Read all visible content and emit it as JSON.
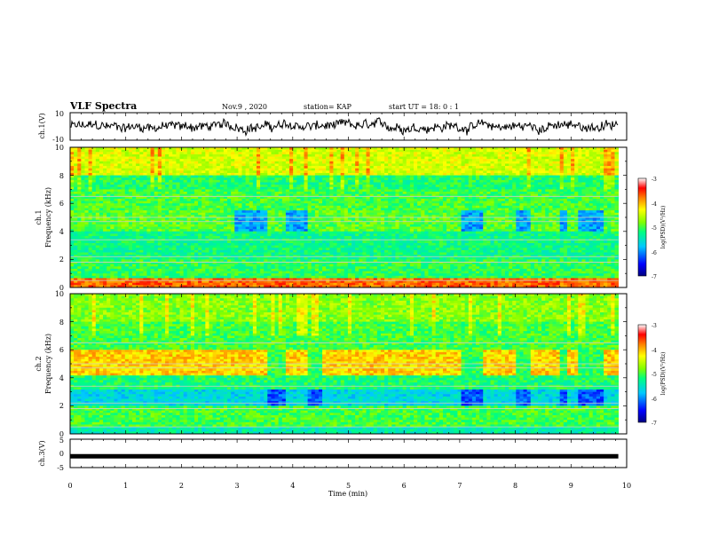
{
  "header": {
    "title": "VLF Spectra",
    "date": "Nov.9 , 2020",
    "station": "station= KAP",
    "start_ut": "start UT = 18: 0 : 1"
  },
  "chart_data": [
    {
      "type": "line",
      "id": "ch1-waveform",
      "ylabel": "ch.1(V)",
      "ylim": [
        -10,
        10
      ],
      "yticks": [
        "10",
        "-10"
      ],
      "x_range": [
        0,
        10
      ],
      "data_xmax": 9.85,
      "description_values": "noisy broadband waveform fluctuating roughly between -6 and +6 V"
    },
    {
      "type": "heatmap",
      "id": "ch1-spectrogram",
      "channel_label": "ch.1",
      "ylabel": "Frequency (kHz)",
      "ylim": [
        0,
        10
      ],
      "yticks": [
        "0",
        "2",
        "4",
        "6",
        "8",
        "10"
      ],
      "x_range": [
        0,
        10
      ],
      "data_xmax": 9.85,
      "colorbar": {
        "label": "log(PSD)(V²/Hz)",
        "range": [
          -7,
          -3
        ],
        "ticks": [
          "-3",
          "-4",
          "-5",
          "-6",
          "-7"
        ],
        "colors": [
          "#000080",
          "#0000ff",
          "#00c8ff",
          "#00ff80",
          "#80ff00",
          "#ffff00",
          "#ff8000",
          "#ff0000",
          "#ffffff"
        ]
      },
      "quiet_intervals_min": [
        [
          2.95,
          3.55
        ],
        [
          3.85,
          4.25
        ],
        [
          7.05,
          7.45
        ],
        [
          8.0,
          8.3
        ],
        [
          8.8,
          8.95
        ],
        [
          9.15,
          9.6
        ]
      ]
    },
    {
      "type": "heatmap",
      "id": "ch2-spectrogram",
      "channel_label": "ch.2",
      "ylabel": "Frequency (kHz)",
      "ylim": [
        0,
        10
      ],
      "yticks": [
        "0",
        "2",
        "4",
        "6",
        "8",
        "10"
      ],
      "x_range": [
        0,
        10
      ],
      "data_xmax": 9.85,
      "colorbar": {
        "label": "log(PSD)(V²/Hz)",
        "range": [
          -7,
          -3
        ],
        "ticks": [
          "-3",
          "-4",
          "-5",
          "-6",
          "-7"
        ]
      },
      "quiet_intervals_min": [
        [
          3.55,
          3.85
        ],
        [
          4.25,
          4.5
        ],
        [
          7.05,
          7.45
        ],
        [
          8.0,
          8.3
        ],
        [
          8.8,
          8.95
        ],
        [
          9.15,
          9.6
        ]
      ]
    },
    {
      "type": "line",
      "id": "ch3-trace",
      "ylabel": "ch.3(V)",
      "ylim": [
        -5,
        5
      ],
      "yticks": [
        "5",
        "0",
        "-5"
      ],
      "x_range": [
        0,
        10
      ],
      "data_xmax": 9.85,
      "level": -1
    }
  ],
  "x_axis": {
    "label": "Time (min)",
    "ticks": [
      "0",
      "1",
      "2",
      "3",
      "4",
      "5",
      "6",
      "7",
      "8",
      "9",
      "10"
    ]
  }
}
